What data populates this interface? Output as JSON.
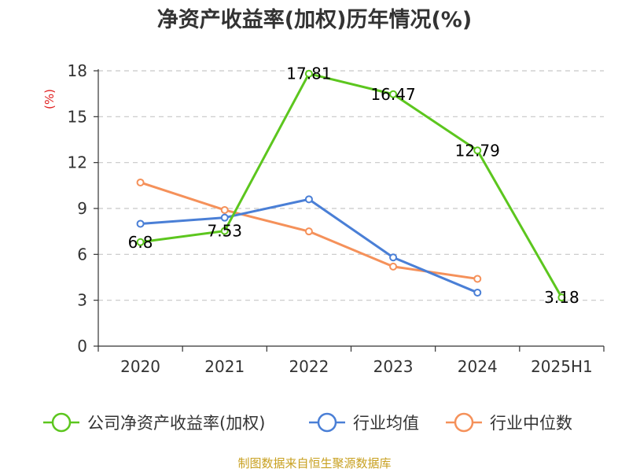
{
  "title": "净资产收益率(加权)历年情况(%)",
  "source": "制图数据来自恒生聚源数据库",
  "chart_data": {
    "type": "line",
    "categories": [
      "2020",
      "2021",
      "2022",
      "2023",
      "2024",
      "2025H1"
    ],
    "ylabel": "(%)",
    "ylim": [
      0,
      18
    ],
    "yticks": [
      0,
      3,
      6,
      9,
      12,
      15,
      18
    ],
    "grid": true,
    "legend_position": "bottom",
    "series": [
      {
        "name": "公司净资产收益率(加权)",
        "color": "#5cc61e",
        "values": [
          6.8,
          7.53,
          17.81,
          16.47,
          12.79,
          3.18
        ],
        "labels": [
          "6.8",
          "7.53",
          "17.81",
          "16.47",
          "12.79",
          "3.18"
        ]
      },
      {
        "name": "行业均值",
        "color": "#4a7fd6",
        "values": [
          8.0,
          8.4,
          9.6,
          5.8,
          3.5,
          null
        ]
      },
      {
        "name": "行业中位数",
        "color": "#f5915a",
        "values": [
          10.7,
          8.9,
          7.5,
          5.2,
          4.4,
          null
        ]
      }
    ]
  }
}
